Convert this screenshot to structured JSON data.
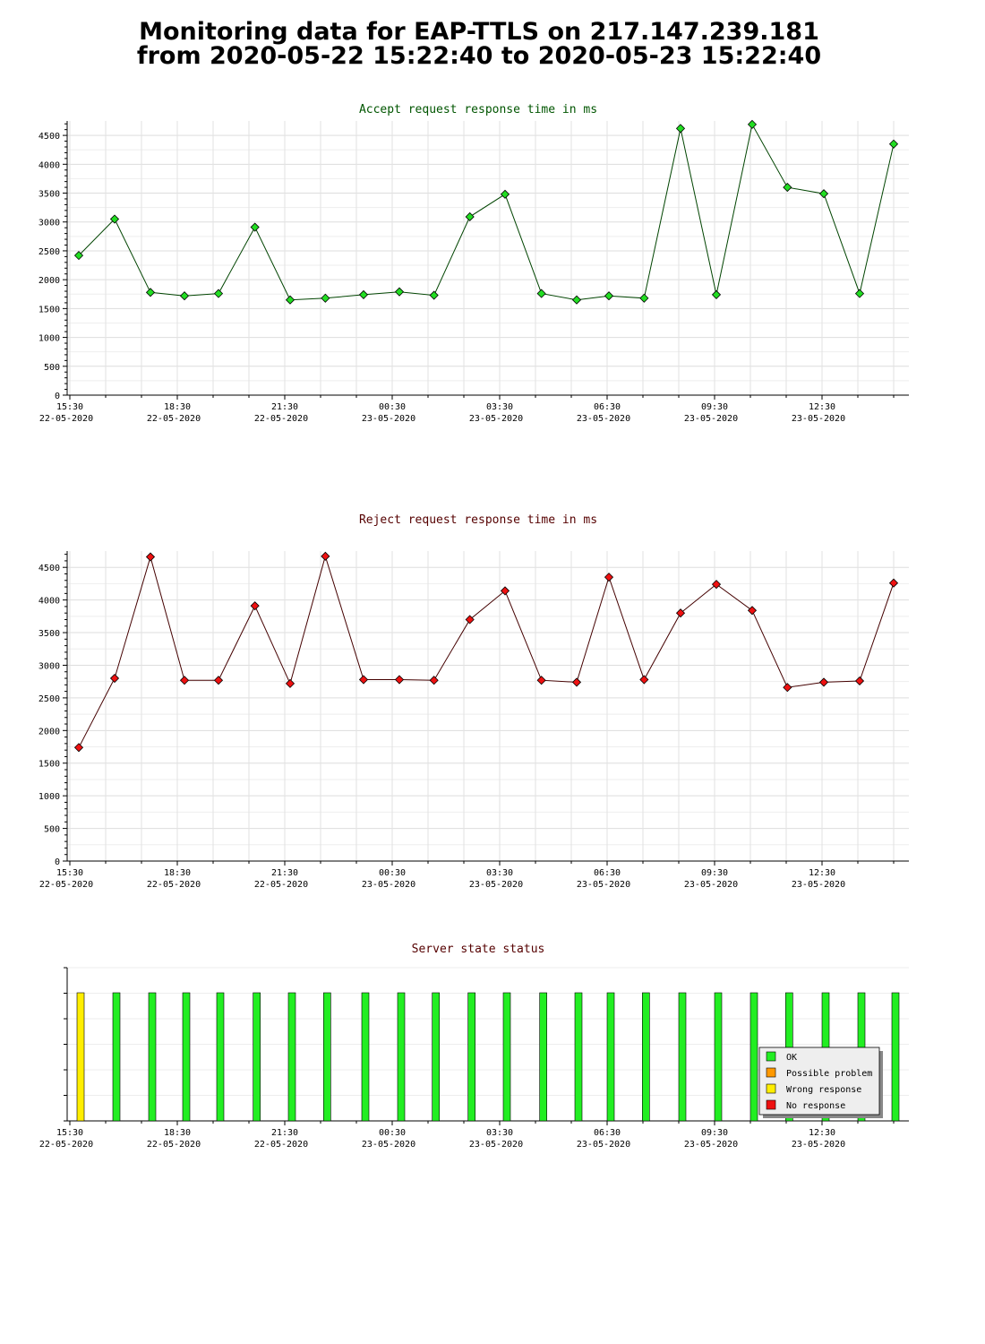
{
  "header": {
    "title_line1": "Monitoring data for EAP-TTLS on 217.147.239.181",
    "title_line2": "from 2020-05-22 15:22:40 to 2020-05-23 15:22:40"
  },
  "time_axis": {
    "labels": [
      {
        "time": "15:30",
        "date": "22-05-2020"
      },
      {
        "time": "18:30",
        "date": "22-05-2020"
      },
      {
        "time": "21:30",
        "date": "22-05-2020"
      },
      {
        "time": "00:30",
        "date": "23-05-2020"
      },
      {
        "time": "03:30",
        "date": "23-05-2020"
      },
      {
        "time": "06:30",
        "date": "23-05-2020"
      },
      {
        "time": "09:30",
        "date": "23-05-2020"
      },
      {
        "time": "12:30",
        "date": "23-05-2020"
      }
    ]
  },
  "chart_data": [
    {
      "type": "line",
      "title": "Accept request response time in ms",
      "title_color": "#005500",
      "line_color": "#004400",
      "marker_color": "#22dd22",
      "ylim": [
        0,
        4750
      ],
      "yticks": [
        0,
        500,
        1000,
        1500,
        2000,
        2500,
        3000,
        3500,
        4000,
        4500
      ],
      "grid": true,
      "x": [
        "2020-05-22 15:45",
        "2020-05-22 16:45",
        "2020-05-22 17:45",
        "2020-05-22 18:42",
        "2020-05-22 19:39",
        "2020-05-22 20:40",
        "2020-05-22 21:39",
        "2020-05-22 22:38",
        "2020-05-22 23:42",
        "2020-05-23 00:42",
        "2020-05-23 01:40",
        "2020-05-23 02:40",
        "2020-05-23 03:39",
        "2020-05-23 04:40",
        "2020-05-23 05:39",
        "2020-05-23 06:33",
        "2020-05-23 07:32",
        "2020-05-23 08:33",
        "2020-05-23 09:33",
        "2020-05-23 10:33",
        "2020-05-23 11:32",
        "2020-05-23 12:33",
        "2020-05-23 13:33",
        "2020-05-23 14:30"
      ],
      "values": [
        2420,
        3050,
        1780,
        1720,
        1760,
        2910,
        1650,
        1680,
        1740,
        1790,
        1730,
        3090,
        3480,
        1760,
        1650,
        1720,
        1680,
        4620,
        1740,
        4690,
        3600,
        3490,
        1760,
        4350
      ]
    },
    {
      "type": "line",
      "title": "Reject request response time in ms",
      "title_color": "#550000",
      "line_color": "#440000",
      "marker_color": "#ee1111",
      "ylim": [
        0,
        4750
      ],
      "yticks": [
        0,
        500,
        1000,
        1500,
        2000,
        2500,
        3000,
        3500,
        4000,
        4500
      ],
      "grid": true,
      "x": [
        "2020-05-22 15:45",
        "2020-05-22 16:45",
        "2020-05-22 17:45",
        "2020-05-22 18:42",
        "2020-05-22 19:39",
        "2020-05-22 20:40",
        "2020-05-22 21:39",
        "2020-05-22 22:38",
        "2020-05-22 23:42",
        "2020-05-23 00:42",
        "2020-05-23 01:40",
        "2020-05-23 02:40",
        "2020-05-23 03:39",
        "2020-05-23 04:40",
        "2020-05-23 05:39",
        "2020-05-23 06:33",
        "2020-05-23 07:32",
        "2020-05-23 08:33",
        "2020-05-23 09:33",
        "2020-05-23 10:33",
        "2020-05-23 11:32",
        "2020-05-23 12:33",
        "2020-05-23 13:33",
        "2020-05-23 14:30"
      ],
      "values": [
        1740,
        2800,
        4660,
        2770,
        2770,
        3910,
        2720,
        4670,
        2780,
        2780,
        2770,
        3700,
        4140,
        2770,
        2740,
        4350,
        2780,
        3800,
        4240,
        3840,
        2660,
        2740,
        2760,
        4260
      ]
    },
    {
      "type": "bar",
      "title": "Server state status",
      "title_color": "#550000",
      "x": [
        "2020-05-22 15:45",
        "2020-05-22 16:45",
        "2020-05-22 17:45",
        "2020-05-22 18:42",
        "2020-05-22 19:39",
        "2020-05-22 20:40",
        "2020-05-22 21:39",
        "2020-05-22 22:38",
        "2020-05-22 23:42",
        "2020-05-23 00:42",
        "2020-05-23 01:40",
        "2020-05-23 02:40",
        "2020-05-23 03:39",
        "2020-05-23 04:40",
        "2020-05-23 05:39",
        "2020-05-23 06:33",
        "2020-05-23 07:32",
        "2020-05-23 08:33",
        "2020-05-23 09:33",
        "2020-05-23 10:33",
        "2020-05-23 11:32",
        "2020-05-23 12:33",
        "2020-05-23 13:33",
        "2020-05-23 14:30"
      ],
      "states": [
        "Wrong response",
        "OK",
        "OK",
        "OK",
        "OK",
        "OK",
        "OK",
        "OK",
        "OK",
        "OK",
        "OK",
        "OK",
        "OK",
        "OK",
        "OK",
        "OK",
        "OK",
        "OK",
        "OK",
        "OK",
        "OK",
        "OK",
        "OK",
        "OK"
      ],
      "legend": [
        {
          "label": "OK",
          "color": "#22ee22"
        },
        {
          "label": "Possible problem",
          "color": "#ff9900"
        },
        {
          "label": "Wrong response",
          "color": "#ffee00"
        },
        {
          "label": "No response",
          "color": "#ee1111"
        }
      ],
      "legend_position": "bottom-right"
    }
  ]
}
